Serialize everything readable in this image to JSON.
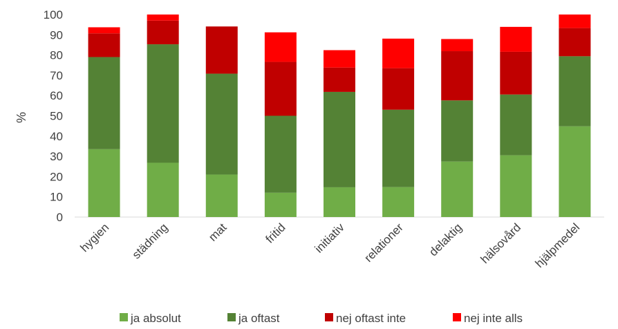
{
  "chart_data": {
    "type": "bar",
    "stacked": true,
    "title": "",
    "xlabel": "",
    "ylabel": "%",
    "ylim": [
      0,
      100
    ],
    "yticks": [
      0,
      10,
      20,
      30,
      40,
      50,
      60,
      70,
      80,
      90,
      100
    ],
    "grid": false,
    "legend_position": "bottom",
    "categories": [
      "hygien",
      "städning",
      "mat",
      "fritid",
      "initiativ",
      "relationer",
      "delaktig",
      "hälsovård",
      "hjälpmedel"
    ],
    "series": [
      {
        "name": "ja absolut",
        "color": "#70ad47",
        "values": [
          33.5,
          26.8,
          21,
          12,
          14.7,
          14.8,
          27.4,
          30.5,
          44.8
        ]
      },
      {
        "name": "ja oftast",
        "color": "#548235",
        "values": [
          45.5,
          58.5,
          49.8,
          38,
          47.1,
          38.2,
          30.2,
          30,
          34.6
        ]
      },
      {
        "name": "nej oftast inte",
        "color": "#c00000",
        "values": [
          11.7,
          11.7,
          23.3,
          26.6,
          12,
          20.5,
          24.3,
          21.1,
          13.9
        ]
      },
      {
        "name": "nej inte alls",
        "color": "#ff0000",
        "values": [
          3,
          3,
          0,
          14.6,
          8.6,
          14.6,
          6,
          12.3,
          6.7
        ]
      }
    ]
  }
}
